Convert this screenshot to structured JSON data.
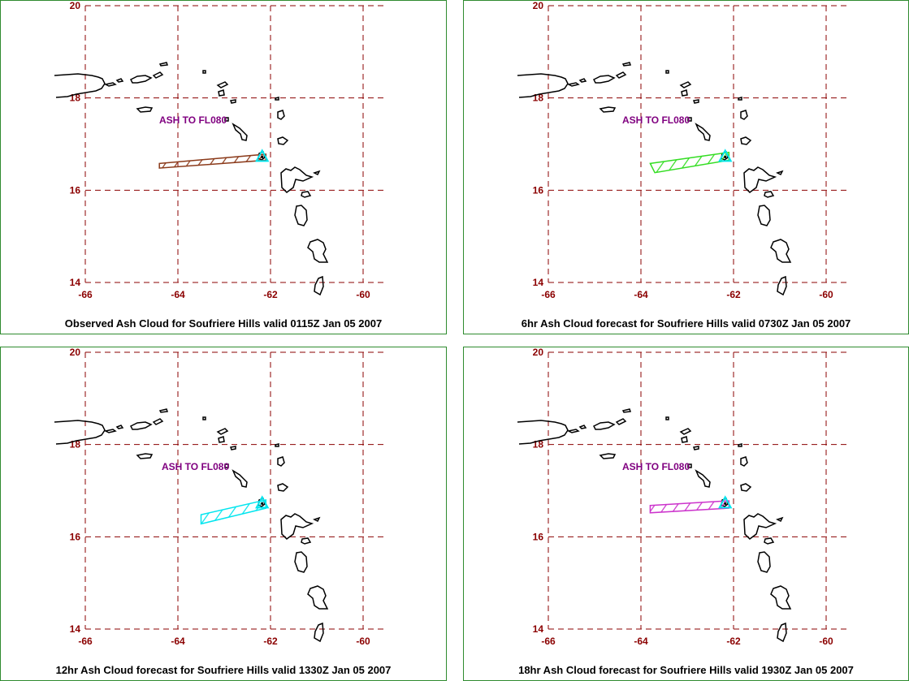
{
  "map": {
    "lon_range": [
      -66,
      -60
    ],
    "lat_range": [
      14,
      20
    ],
    "lon_ticks": [
      "-66",
      "-64",
      "-62",
      "-60"
    ],
    "lat_ticks": [
      "20",
      "18",
      "16",
      "14"
    ],
    "grid": true,
    "colors": {
      "grid": "#8b0000",
      "coast": "#000000",
      "label": "#800080",
      "frame": "#2e8b2e"
    },
    "volcano_marker": "triangle-icon"
  },
  "panels": [
    {
      "caption": "Observed Ash Cloud for Soufriere  Hills valid 0115Z Jan 05 2007",
      "label": "ASH TO FL080",
      "cloud_color": "#8b3a1a",
      "marker_color": "#00e5ee",
      "cloud": [
        [
          -64.4,
          16.58
        ],
        [
          -62.1,
          16.78
        ],
        [
          -62.1,
          16.65
        ],
        [
          -64.4,
          16.48
        ]
      ]
    },
    {
      "caption": "6hr Ash Cloud forecast for Soufriere  Hills valid 0730Z Jan 05 2007",
      "label": "ASH TO FL080",
      "cloud_color": "#33dd22",
      "marker_color": "#00e5ee",
      "cloud": [
        [
          -63.8,
          16.58
        ],
        [
          -62.1,
          16.82
        ],
        [
          -62.1,
          16.65
        ],
        [
          -63.7,
          16.38
        ]
      ]
    },
    {
      "caption": "12hr Ash Cloud forecast for Soufriere  Hills valid 1330Z Jan 05 2007",
      "label": "ASH TO FL080",
      "cloud_color": "#00e5ee",
      "marker_color": "#00e5ee",
      "cloud": [
        [
          -63.5,
          16.48
        ],
        [
          -62.1,
          16.8
        ],
        [
          -62.1,
          16.62
        ],
        [
          -63.5,
          16.28
        ]
      ]
    },
    {
      "caption": "18hr Ash Cloud forecast for Soufriere  Hills valid 1930Z Jan 05 2007",
      "label": "ASH TO FL080",
      "cloud_color": "#cc33cc",
      "marker_color": "#00e5ee",
      "cloud": [
        [
          -63.8,
          16.68
        ],
        [
          -62.1,
          16.78
        ],
        [
          -62.1,
          16.62
        ],
        [
          -63.8,
          16.52
        ]
      ]
    }
  ]
}
